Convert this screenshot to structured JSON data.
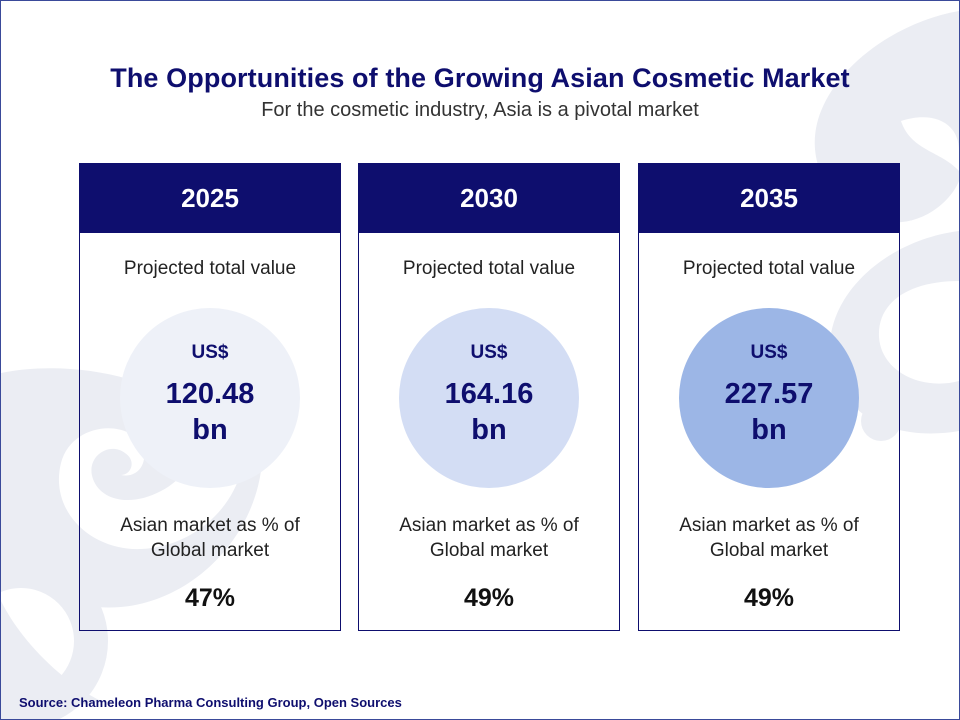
{
  "header": {
    "title": "The Opportunities of the Growing Asian Cosmetic Market",
    "subtitle": "For the cosmetic industry, Asia is a pivotal market"
  },
  "cards": [
    {
      "year": "2025",
      "projected_label": "Projected total value",
      "currency": "US$",
      "value": "120.48",
      "unit": "bn",
      "share_label_line1": "Asian market as % of",
      "share_label_line2": "Global market",
      "share_value": "47%",
      "circle_color": "#eef1f8"
    },
    {
      "year": "2030",
      "projected_label": "Projected total value",
      "currency": "US$",
      "value": "164.16",
      "unit": "bn",
      "share_label_line1": "Asian market as % of",
      "share_label_line2": "Global market",
      "share_value": "49%",
      "circle_color": "#d3ddf4"
    },
    {
      "year": "2035",
      "projected_label": "Projected total value",
      "currency": "US$",
      "value": "227.57",
      "unit": "bn",
      "share_label_line1": "Asian market as % of",
      "share_label_line2": "Global market",
      "share_value": "49%",
      "circle_color": "#9cb6e6"
    }
  ],
  "footer": {
    "source": "Source: Chameleon Pharma Consulting Group, Open Sources"
  },
  "colors": {
    "navy": "#0e0e6e",
    "watermark": "#ebedf3"
  }
}
